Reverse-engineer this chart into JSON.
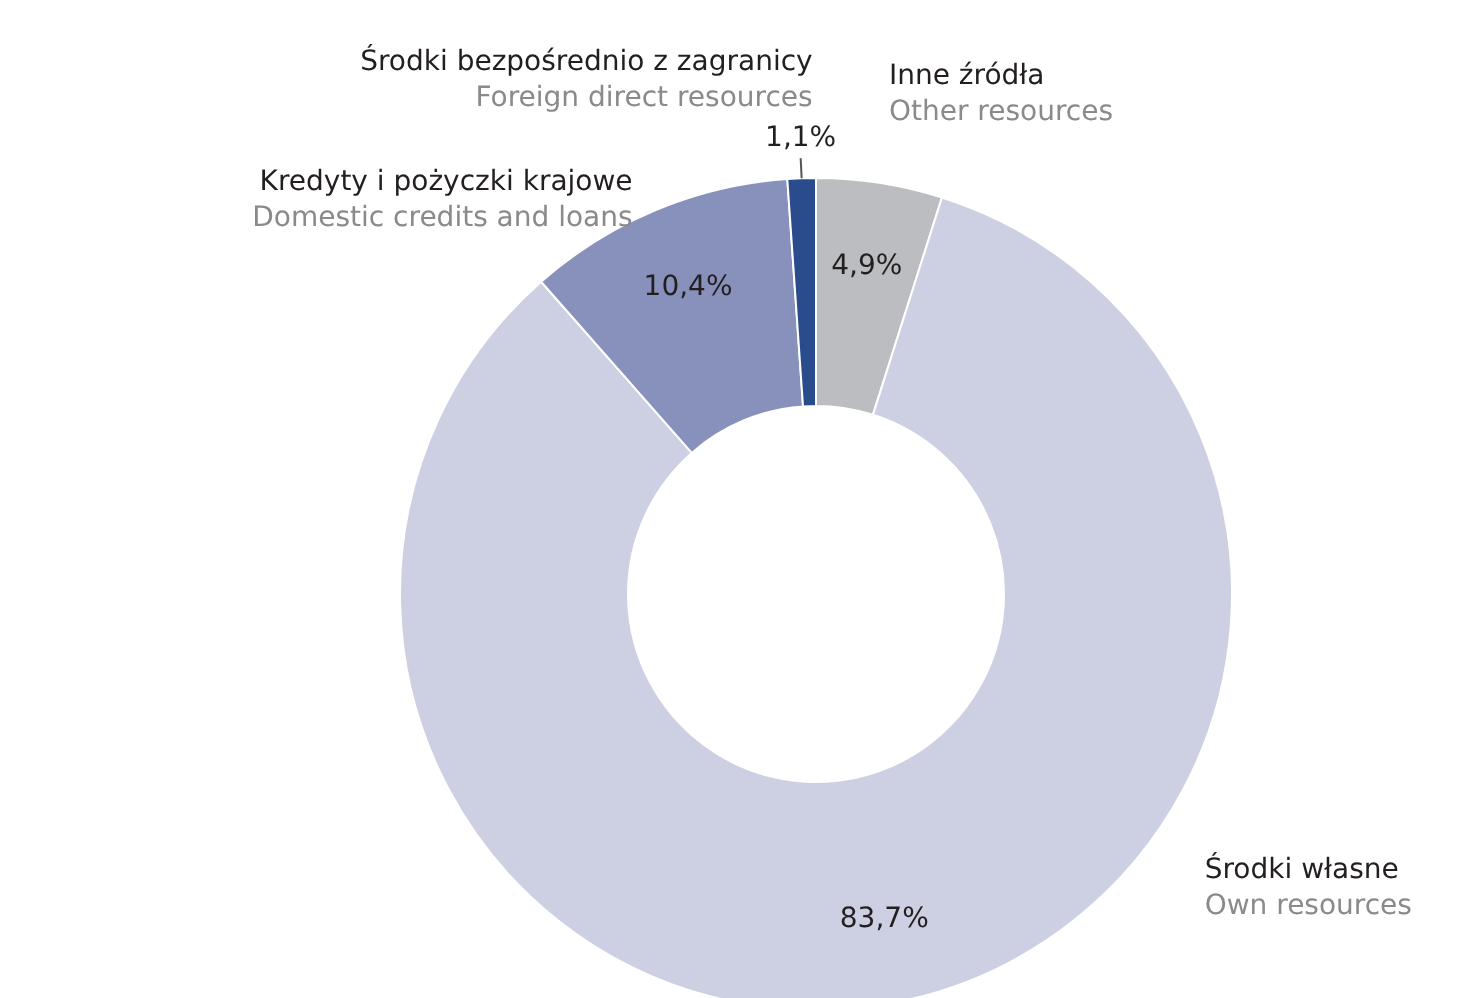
{
  "chart_data": {
    "type": "donut",
    "categories": [
      "Inne źródła\nOther resources",
      "Środki własne\nOwn resources",
      "Kredyty i pożyczki krajowe\nDomestic credits and loans",
      "Środki bezpośrednio z zagranicy\nForeign direct resources"
    ],
    "values": [
      4.9,
      83.7,
      10.4,
      1.1
    ],
    "colors": [
      "#bcbdc0",
      "#cdd0e3",
      "#8891bb",
      "#2b4c8c"
    ],
    "value_labels": [
      "4,9%",
      "83,7%",
      "10,4%",
      "1,1%"
    ]
  }
}
